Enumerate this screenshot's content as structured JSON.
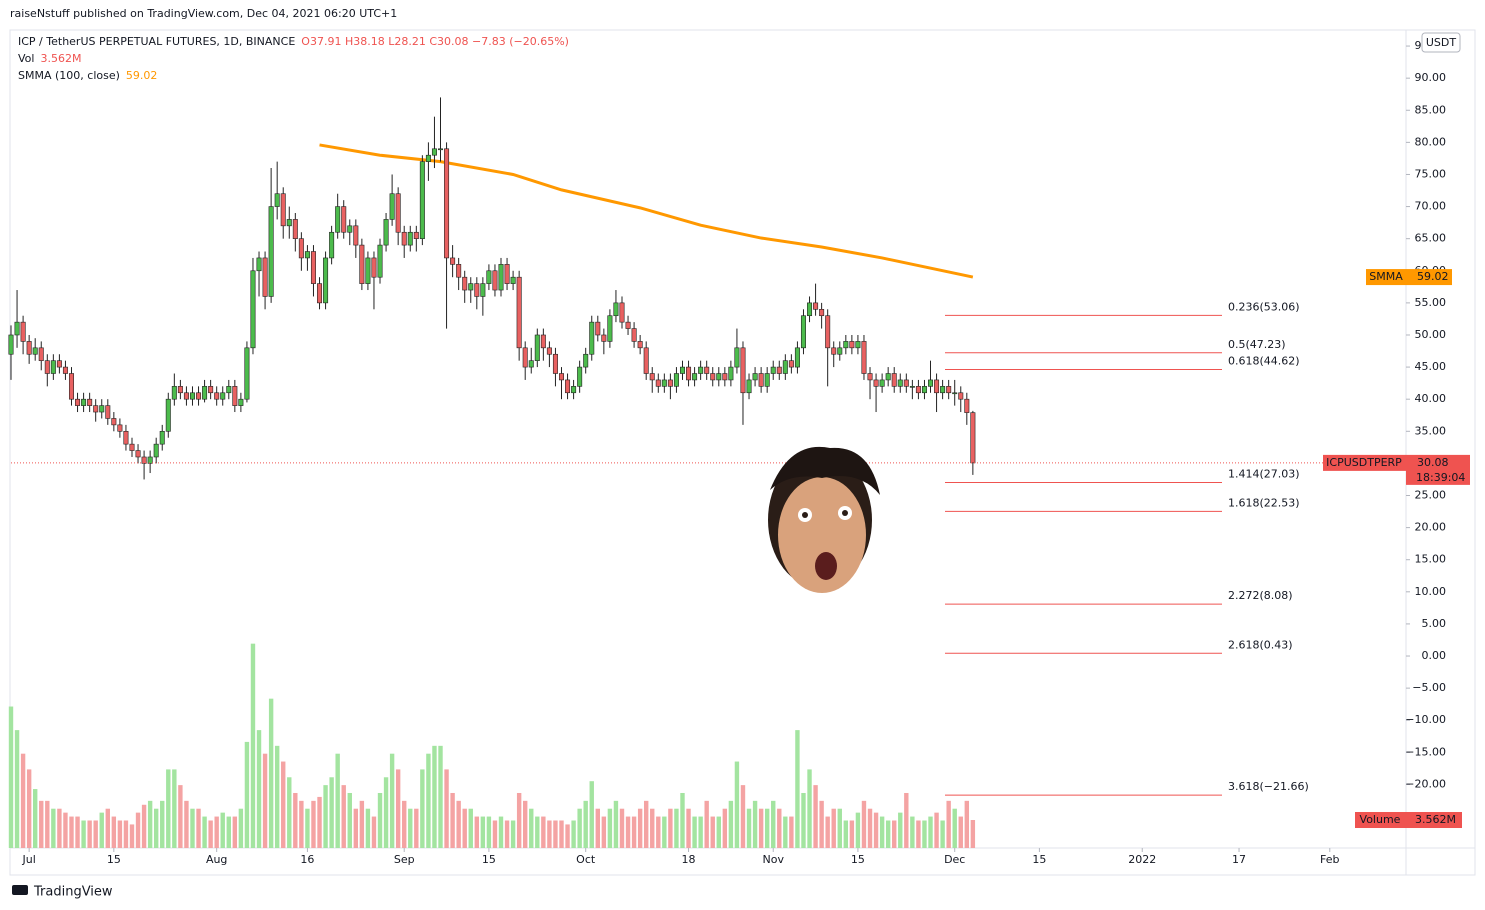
{
  "header": {
    "published": "raiseNstuff published on TradingView.com, Dec 04, 2021 06:20 UTC+1",
    "symbol": "ICP / TetherUS PERPETUAL FUTURES, 1D, BINANCE",
    "ohlc": "O37.91 H38.18 L28.21 C30.08 −7.83 (−20.65%)",
    "volume_name": "Vol",
    "smma_name": "SMMA (100, close)"
  },
  "footer": {
    "brand": "TradingView"
  },
  "chart_data": {
    "type": "candlestick",
    "currency": "USDT",
    "symbol_tag": "ICPUSDTPERP",
    "countdown": "18:39:04",
    "up_color": "#4cbb4c",
    "down_color": "#e86161",
    "price_line_color": "#ef5350",
    "xlim": [
      0,
      230.6
    ],
    "xticks": [
      {
        "value": 3,
        "label": "Jul"
      },
      {
        "value": 17,
        "label": "15"
      },
      {
        "value": 34,
        "label": "Aug"
      },
      {
        "value": 49,
        "label": "16"
      },
      {
        "value": 65,
        "label": "Sep"
      },
      {
        "value": 79,
        "label": "15"
      },
      {
        "value": 95,
        "label": "Oct"
      },
      {
        "value": 112,
        "label": "18"
      },
      {
        "value": 126,
        "label": "Nov"
      },
      {
        "value": 140,
        "label": "15"
      },
      {
        "value": 156,
        "label": "Dec"
      },
      {
        "value": 170,
        "label": "15"
      },
      {
        "value": 187,
        "label": "2022"
      },
      {
        "value": 203,
        "label": "17"
      },
      {
        "value": 218,
        "label": "Feb"
      }
    ],
    "ylim": [
      -29.9,
      97.5
    ],
    "yticks": [
      {
        "value": -20,
        "label": "−20.00"
      },
      {
        "value": -15,
        "label": "−15.00"
      },
      {
        "value": -10,
        "label": "−10.00"
      },
      {
        "value": -5,
        "label": "−5.00"
      },
      {
        "value": 0,
        "label": "0.00"
      },
      {
        "value": 5,
        "label": "5.00"
      },
      {
        "value": 10,
        "label": "10.00"
      },
      {
        "value": 15,
        "label": "15.00"
      },
      {
        "value": 20,
        "label": "20.00"
      },
      {
        "value": 25,
        "label": "25.00"
      },
      {
        "value": 30,
        "label": "30.00"
      },
      {
        "value": 35,
        "label": "35.00"
      },
      {
        "value": 40,
        "label": "40.00"
      },
      {
        "value": 45,
        "label": "45.00"
      },
      {
        "value": 50,
        "label": "50.00"
      },
      {
        "value": 55,
        "label": "55.00"
      },
      {
        "value": 60,
        "label": "60.00"
      },
      {
        "value": 65,
        "label": "65.00"
      },
      {
        "value": 70,
        "label": "70.00"
      },
      {
        "value": 75,
        "label": "75.00"
      },
      {
        "value": 80,
        "label": "80.00"
      },
      {
        "value": 85,
        "label": "85.00"
      },
      {
        "value": 90,
        "label": "90.00"
      },
      {
        "value": 95,
        "label": "95.00"
      }
    ],
    "grid": false,
    "candles": [
      [
        47,
        51.5,
        43,
        50
      ],
      [
        50,
        57,
        48,
        52
      ],
      [
        52,
        53,
        47,
        49
      ],
      [
        49,
        50,
        45.5,
        47
      ],
      [
        47,
        49.5,
        46,
        48
      ],
      [
        48,
        49,
        44.5,
        46
      ],
      [
        46,
        47,
        42,
        44
      ],
      [
        44,
        47,
        43,
        46
      ],
      [
        46,
        47,
        44,
        45
      ],
      [
        45,
        46,
        43,
        44
      ],
      [
        44,
        45,
        39,
        40
      ],
      [
        40,
        41,
        38,
        39
      ],
      [
        39,
        41,
        38,
        40
      ],
      [
        40,
        41,
        38,
        39
      ],
      [
        39,
        40,
        36.5,
        38
      ],
      [
        38,
        40,
        37,
        39
      ],
      [
        39,
        40,
        36,
        37
      ],
      [
        37,
        38,
        35,
        36
      ],
      [
        36,
        37,
        34,
        35
      ],
      [
        35,
        36,
        32,
        33
      ],
      [
        33,
        34,
        31,
        32
      ],
      [
        32,
        33,
        30,
        31
      ],
      [
        31,
        32,
        27.5,
        30
      ],
      [
        30,
        32,
        28.5,
        31
      ],
      [
        31,
        34,
        30,
        33
      ],
      [
        33,
        36,
        32,
        35
      ],
      [
        35,
        41,
        34,
        40
      ],
      [
        40,
        44,
        39,
        42
      ],
      [
        42,
        43,
        40,
        41
      ],
      [
        41,
        42,
        39,
        40
      ],
      [
        40,
        42,
        39,
        41
      ],
      [
        41,
        42,
        39,
        40
      ],
      [
        40,
        43,
        39.5,
        42
      ],
      [
        42,
        43,
        40,
        41
      ],
      [
        41,
        42,
        39,
        40
      ],
      [
        40,
        42,
        39,
        41
      ],
      [
        41,
        43,
        40,
        42
      ],
      [
        42,
        43,
        38,
        39
      ],
      [
        39,
        41,
        38,
        40
      ],
      [
        40,
        49,
        39.5,
        48
      ],
      [
        48,
        62,
        47,
        60
      ],
      [
        60,
        63,
        56,
        62
      ],
      [
        62,
        63,
        54,
        56
      ],
      [
        56,
        76,
        55,
        70
      ],
      [
        70,
        77,
        68,
        72
      ],
      [
        72,
        73,
        65,
        67
      ],
      [
        67,
        70,
        65,
        68
      ],
      [
        68,
        69,
        63,
        65
      ],
      [
        65,
        66,
        60,
        62
      ],
      [
        62,
        64,
        60,
        63
      ],
      [
        63,
        64,
        56,
        58
      ],
      [
        58,
        59,
        54,
        55
      ],
      [
        55,
        63,
        54,
        62
      ],
      [
        62,
        67,
        61,
        66
      ],
      [
        66,
        72,
        65,
        70
      ],
      [
        70,
        71,
        65,
        66
      ],
      [
        66,
        68,
        64,
        67
      ],
      [
        67,
        68,
        62,
        64
      ],
      [
        64,
        65,
        57,
        58
      ],
      [
        58,
        63,
        57,
        62
      ],
      [
        62,
        63,
        54,
        59
      ],
      [
        59,
        65,
        58,
        64
      ],
      [
        64,
        69,
        63,
        68
      ],
      [
        68,
        75,
        67,
        72
      ],
      [
        72,
        73,
        64,
        66
      ],
      [
        66,
        67,
        62,
        64
      ],
      [
        64,
        67,
        63,
        66
      ],
      [
        66,
        67,
        63,
        65
      ],
      [
        65,
        78,
        64,
        77
      ],
      [
        77,
        80,
        74,
        78
      ],
      [
        78,
        84,
        76,
        79
      ],
      [
        79,
        87,
        77,
        79
      ],
      [
        79,
        80,
        51,
        62
      ],
      [
        62,
        64,
        59,
        61
      ],
      [
        61,
        62,
        57,
        59
      ],
      [
        59,
        60,
        55,
        57
      ],
      [
        57,
        59,
        55,
        58
      ],
      [
        58,
        59,
        54,
        56
      ],
      [
        56,
        59,
        53,
        58
      ],
      [
        58,
        61,
        57,
        60
      ],
      [
        60,
        61,
        56,
        57
      ],
      [
        57,
        62,
        56,
        61
      ],
      [
        61,
        62,
        57,
        58
      ],
      [
        58,
        60,
        57,
        59
      ],
      [
        59,
        60,
        46,
        48
      ],
      [
        48,
        49,
        43,
        45
      ],
      [
        45,
        48,
        44,
        46
      ],
      [
        46,
        51,
        45,
        50
      ],
      [
        50,
        51,
        46,
        48
      ],
      [
        48,
        49,
        45,
        47
      ],
      [
        47,
        48,
        42,
        44
      ],
      [
        44,
        45,
        40,
        43
      ],
      [
        43,
        44,
        40,
        41
      ],
      [
        41,
        43,
        40,
        42
      ],
      [
        42,
        46,
        41,
        45
      ],
      [
        45,
        48,
        44,
        47
      ],
      [
        47,
        53,
        46,
        52
      ],
      [
        52,
        53,
        49,
        50
      ],
      [
        50,
        51,
        47,
        49
      ],
      [
        49,
        54,
        48,
        53
      ],
      [
        53,
        57,
        52,
        55
      ],
      [
        55,
        56,
        51,
        52
      ],
      [
        52,
        53,
        50,
        51
      ],
      [
        51,
        52,
        48,
        49
      ],
      [
        49,
        50,
        47,
        48
      ],
      [
        48,
        49,
        43,
        44
      ],
      [
        44,
        45,
        41,
        43
      ],
      [
        43,
        44,
        41,
        42
      ],
      [
        42,
        44,
        41,
        43
      ],
      [
        43,
        44,
        40,
        42
      ],
      [
        42,
        45,
        41,
        44
      ],
      [
        44,
        46,
        43,
        45
      ],
      [
        45,
        46,
        42,
        43
      ],
      [
        43,
        45,
        42,
        44
      ],
      [
        44,
        46,
        43,
        45
      ],
      [
        45,
        46,
        43,
        44
      ],
      [
        44,
        45,
        42,
        43
      ],
      [
        43,
        45,
        42,
        44
      ],
      [
        44,
        45,
        42,
        43
      ],
      [
        43,
        46,
        42,
        45
      ],
      [
        45,
        51,
        44,
        48
      ],
      [
        48,
        49,
        36,
        41
      ],
      [
        41,
        44,
        40,
        43
      ],
      [
        43,
        45,
        42,
        44
      ],
      [
        44,
        45,
        41,
        42
      ],
      [
        42,
        45,
        41,
        44
      ],
      [
        44,
        46,
        43,
        45
      ],
      [
        45,
        46,
        43,
        44
      ],
      [
        44,
        47,
        43,
        46
      ],
      [
        46,
        47,
        44,
        45
      ],
      [
        45,
        49,
        44,
        48
      ],
      [
        48,
        54,
        47,
        53
      ],
      [
        53,
        56,
        52,
        55
      ],
      [
        55,
        58,
        53,
        54
      ],
      [
        54,
        55,
        51,
        53
      ],
      [
        53,
        54,
        42,
        48
      ],
      [
        48,
        49,
        45,
        47
      ],
      [
        47,
        49,
        46,
        48
      ],
      [
        48,
        50,
        47,
        49
      ],
      [
        49,
        50,
        47,
        48
      ],
      [
        48,
        50,
        47,
        49
      ],
      [
        49,
        50,
        43,
        44
      ],
      [
        44,
        45,
        40,
        43
      ],
      [
        43,
        44,
        38,
        42
      ],
      [
        42,
        44,
        41,
        43
      ],
      [
        43,
        45,
        42,
        44
      ],
      [
        44,
        45,
        41,
        42
      ],
      [
        42,
        44,
        41,
        43
      ],
      [
        43,
        44,
        41,
        42
      ],
      [
        42,
        43,
        40,
        42
      ],
      [
        42,
        43,
        40,
        41
      ],
      [
        41,
        43,
        40,
        42
      ],
      [
        42,
        46,
        41,
        43
      ],
      [
        43,
        44,
        38,
        41
      ],
      [
        41,
        43,
        40,
        42
      ],
      [
        42,
        43,
        40,
        41
      ],
      [
        41,
        43,
        39,
        41
      ],
      [
        41,
        42,
        38,
        40
      ],
      [
        40,
        41,
        36,
        37.91
      ],
      [
        37.91,
        38.18,
        28.21,
        30.08
      ]
    ],
    "volume": {
      "name": "Volume",
      "last_label": "3.562M",
      "ylim": [
        0,
        34.1
      ],
      "up_color": "#a3e4a0",
      "down_color": "#f4a3a3",
      "values": [
        18,
        15,
        12,
        10,
        7.5,
        6,
        6,
        5,
        5,
        4.5,
        4,
        4,
        3.5,
        3.5,
        3.5,
        4.5,
        5,
        4,
        3.5,
        3.5,
        3,
        4.5,
        5.5,
        6,
        5,
        6,
        10,
        10,
        8,
        6,
        5,
        5,
        4,
        3.5,
        4,
        4.5,
        4,
        4,
        5,
        13.5,
        26,
        15,
        12,
        19,
        13,
        11,
        9,
        7,
        6,
        5,
        6,
        6.5,
        8,
        9,
        12,
        8,
        7,
        5,
        6,
        5,
        4,
        7,
        9,
        12,
        10,
        6,
        5,
        5,
        10,
        12,
        13,
        13,
        10,
        7,
        6,
        5,
        5,
        4,
        4,
        4,
        3.5,
        4,
        3.5,
        3.5,
        7,
        6,
        5,
        4,
        4,
        3.5,
        3.5,
        3.5,
        3,
        3.5,
        5,
        6,
        8.5,
        5,
        4,
        5,
        6,
        5,
        4,
        4,
        5,
        6,
        5,
        4,
        4,
        5,
        5,
        7,
        5,
        4,
        4,
        6,
        4,
        4,
        5,
        6,
        11,
        8,
        5,
        6,
        5,
        5,
        6,
        5,
        4,
        4,
        15,
        7,
        10,
        8,
        6,
        4,
        5,
        5,
        3.5,
        3.5,
        4.5,
        6,
        5,
        4.5,
        4,
        3.5,
        3.5,
        4.5,
        7,
        4,
        3.5,
        3.5,
        4,
        4.5,
        3.5,
        6,
        5,
        4,
        6,
        3.562
      ]
    },
    "smma": {
      "name": "SMMA",
      "color": "#ff9800",
      "x": [
        51,
        61,
        71,
        83,
        91,
        104,
        114,
        124,
        134,
        144,
        159
      ],
      "values": [
        79.6,
        78.0,
        77.0,
        75.0,
        72.6,
        69.8,
        67.1,
        65.1,
        63.7,
        62.0,
        59.02
      ]
    },
    "fib_color": "#ef5350",
    "fib_levels": [
      {
        "label": "0.236(53.06)",
        "value": 53.06
      },
      {
        "label": "0.5(47.23)",
        "value": 47.23
      },
      {
        "label": "0.618(44.62)",
        "value": 44.62
      },
      {
        "label": "1.414(27.03)",
        "value": 27.03
      },
      {
        "label": "1.618(22.53)",
        "value": 22.53
      },
      {
        "label": "2.272(8.08)",
        "value": 8.08
      },
      {
        "label": "2.618(0.43)",
        "value": 0.43
      },
      {
        "label": "3.618(−21.66)",
        "value": -21.66
      }
    ]
  }
}
